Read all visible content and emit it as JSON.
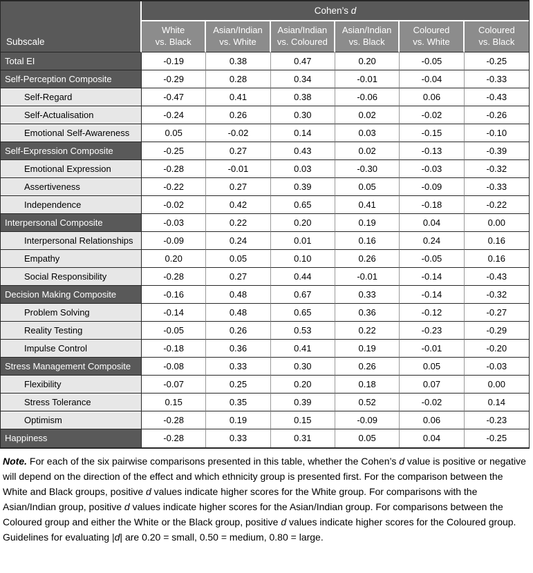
{
  "colors": {
    "dark_row_bg": "#595959",
    "column_header_bg": "#8c8c8c",
    "sub_row_bg": "#e7e7e7",
    "value_cell_bg": "#ffffff",
    "header_text": "#ffffff",
    "body_text": "#000000",
    "grid_border": "#262626",
    "value_divider": "#999999"
  },
  "table": {
    "corner_header": "Subscale",
    "span_header_segments": [
      {
        "t": "Cohen’s "
      },
      {
        "t": "d",
        "i": true
      }
    ],
    "columns": [
      {
        "line1": "White",
        "line2": "vs. Black"
      },
      {
        "line1": "Asian/Indian",
        "line2": "vs. White"
      },
      {
        "line1": "Asian/Indian",
        "line2": "vs. Coloured"
      },
      {
        "line1": "Asian/Indian",
        "line2": "vs. Black"
      },
      {
        "line1": "Coloured",
        "line2": "vs. White"
      },
      {
        "line1": "Coloured",
        "line2": "vs. Black"
      }
    ],
    "rows": [
      {
        "label": "Total EI",
        "style": "composite",
        "values": [
          "-0.19",
          "0.38",
          "0.47",
          "0.20",
          "-0.05",
          "-0.25"
        ]
      },
      {
        "label": "Self-Perception Composite",
        "style": "composite",
        "values": [
          "-0.29",
          "0.28",
          "0.34",
          "-0.01",
          "-0.04",
          "-0.33"
        ]
      },
      {
        "label": "Self-Regard",
        "style": "sub",
        "values": [
          "-0.47",
          "0.41",
          "0.38",
          "-0.06",
          "0.06",
          "-0.43"
        ]
      },
      {
        "label": "Self-Actualisation",
        "style": "sub",
        "values": [
          "-0.24",
          "0.26",
          "0.30",
          "0.02",
          "-0.02",
          "-0.26"
        ]
      },
      {
        "label": "Emotional Self-Awareness",
        "style": "sub",
        "values": [
          "0.05",
          "-0.02",
          "0.14",
          "0.03",
          "-0.15",
          "-0.10"
        ]
      },
      {
        "label": "Self-Expression Composite",
        "style": "composite",
        "values": [
          "-0.25",
          "0.27",
          "0.43",
          "0.02",
          "-0.13",
          "-0.39"
        ]
      },
      {
        "label": "Emotional Expression",
        "style": "sub",
        "values": [
          "-0.28",
          "-0.01",
          "0.03",
          "-0.30",
          "-0.03",
          "-0.32"
        ]
      },
      {
        "label": "Assertiveness",
        "style": "sub",
        "values": [
          "-0.22",
          "0.27",
          "0.39",
          "0.05",
          "-0.09",
          "-0.33"
        ]
      },
      {
        "label": "Independence",
        "style": "sub",
        "values": [
          "-0.02",
          "0.42",
          "0.65",
          "0.41",
          "-0.18",
          "-0.22"
        ]
      },
      {
        "label": "Interpersonal Composite",
        "style": "composite",
        "values": [
          "-0.03",
          "0.22",
          "0.20",
          "0.19",
          "0.04",
          "0.00"
        ]
      },
      {
        "label": "Interpersonal Relationships",
        "style": "sub",
        "values": [
          "-0.09",
          "0.24",
          "0.01",
          "0.16",
          "0.24",
          "0.16"
        ]
      },
      {
        "label": "Empathy",
        "style": "sub",
        "values": [
          "0.20",
          "0.05",
          "0.10",
          "0.26",
          "-0.05",
          "0.16"
        ]
      },
      {
        "label": "Social Responsibility",
        "style": "sub",
        "values": [
          "-0.28",
          "0.27",
          "0.44",
          "-0.01",
          "-0.14",
          "-0.43"
        ]
      },
      {
        "label": "Decision Making Composite",
        "style": "composite",
        "values": [
          "-0.16",
          "0.48",
          "0.67",
          "0.33",
          "-0.14",
          "-0.32"
        ]
      },
      {
        "label": "Problem Solving",
        "style": "sub",
        "values": [
          "-0.14",
          "0.48",
          "0.65",
          "0.36",
          "-0.12",
          "-0.27"
        ]
      },
      {
        "label": "Reality Testing",
        "style": "sub",
        "values": [
          "-0.05",
          "0.26",
          "0.53",
          "0.22",
          "-0.23",
          "-0.29"
        ]
      },
      {
        "label": "Impulse Control",
        "style": "sub",
        "values": [
          "-0.18",
          "0.36",
          "0.41",
          "0.19",
          "-0.01",
          "-0.20"
        ]
      },
      {
        "label": "Stress Management Composite",
        "style": "composite",
        "values": [
          "-0.08",
          "0.33",
          "0.30",
          "0.26",
          "0.05",
          "-0.03"
        ]
      },
      {
        "label": "Flexibility",
        "style": "sub",
        "values": [
          "-0.07",
          "0.25",
          "0.20",
          "0.18",
          "0.07",
          "0.00"
        ]
      },
      {
        "label": "Stress Tolerance",
        "style": "sub",
        "values": [
          "0.15",
          "0.35",
          "0.39",
          "0.52",
          "-0.02",
          "0.14"
        ]
      },
      {
        "label": "Optimism",
        "style": "sub",
        "values": [
          "-0.28",
          "0.19",
          "0.15",
          "-0.09",
          "0.06",
          "-0.23"
        ]
      },
      {
        "label": "Happiness",
        "style": "composite",
        "values": [
          "-0.28",
          "0.33",
          "0.31",
          "0.05",
          "0.04",
          "-0.25"
        ]
      }
    ]
  },
  "note": {
    "segments": [
      {
        "t": "Note.",
        "b": true,
        "i": true
      },
      {
        "t": " For each of the six pairwise comparisons presented in this table, whether the Cohen’s "
      },
      {
        "t": "d",
        "i": true
      },
      {
        "t": " value is positive or negative will depend on the direction of the effect and which ethnicity group is presented first. For the comparison between the White and Black groups, positive "
      },
      {
        "t": "d",
        "i": true
      },
      {
        "t": " values indicate higher scores for the White group. For comparisons with the Asian/Indian group, positive "
      },
      {
        "t": "d",
        "i": true
      },
      {
        "t": " values indicate higher scores for the Asian/Indian group. For comparisons between the Coloured group and either the White or the Black group, positive "
      },
      {
        "t": "d",
        "i": true
      },
      {
        "t": " values indicate higher scores for the Coloured group. Guidelines for evaluating |"
      },
      {
        "t": "d",
        "i": true
      },
      {
        "t": "| are 0.20 = small, 0.50 = medium, 0.80 = large."
      }
    ]
  }
}
